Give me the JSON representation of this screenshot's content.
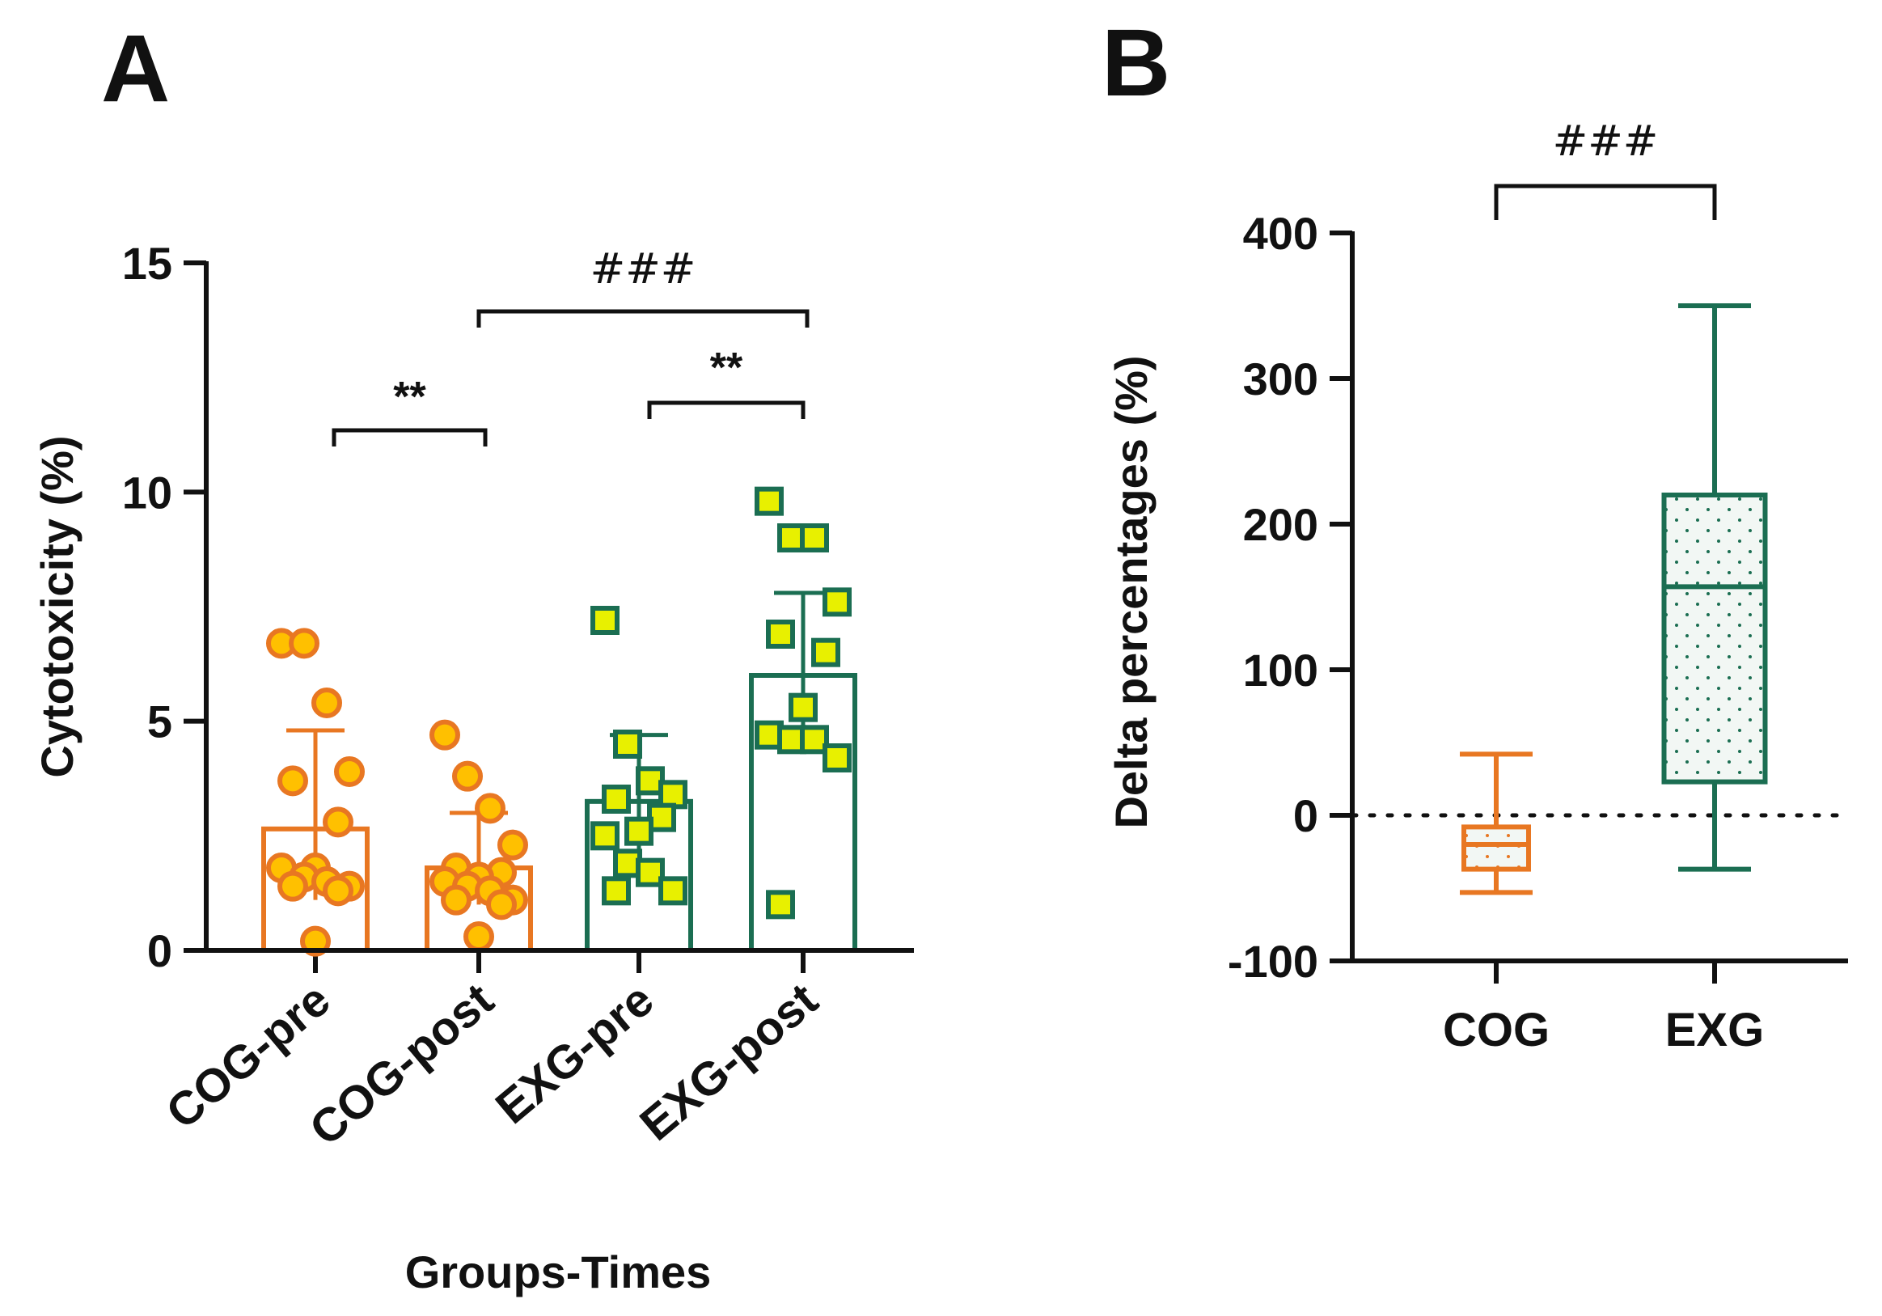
{
  "colors": {
    "orange": "#E87722",
    "green": "#1B6E52",
    "point_fill_orange": "#FFC000",
    "point_fill_green": "#E8F000",
    "box_fill": "#F2F7F4",
    "axis": "#111111"
  },
  "chart_data": [
    {
      "panel": "A",
      "type": "bar",
      "xlabel": "Groups-Times",
      "ylabel": "Cytotoxicity (%)",
      "ylim": [
        0,
        15
      ],
      "yticks": [
        "0",
        "5",
        "10",
        "15"
      ],
      "categories": [
        "COG-pre",
        "COG-post",
        "EXG-pre",
        "EXG-post"
      ],
      "series": [
        {
          "values": [
            2.65,
            1.8,
            3.25,
            6.0
          ],
          "error_upper": [
            4.8,
            3.0,
            4.7,
            7.8
          ],
          "error_lower": [
            1.1,
            1.0,
            2.0,
            4.5
          ],
          "points": [
            [
              6.7,
              6.7,
              5.4,
              3.9,
              3.7,
              2.8,
              1.8,
              1.8,
              1.6,
              1.5,
              1.4,
              1.4,
              1.3,
              0.2
            ],
            [
              4.7,
              3.8,
              3.1,
              2.3,
              1.8,
              1.7,
              1.6,
              1.5,
              1.4,
              1.3,
              1.1,
              1.1,
              1.0,
              0.3
            ],
            [
              7.2,
              4.5,
              3.7,
              3.4,
              3.3,
              2.9,
              2.6,
              2.5,
              1.9,
              1.7,
              1.3,
              1.3
            ],
            [
              9.8,
              9.0,
              9.0,
              7.6,
              6.9,
              6.5,
              5.3,
              4.7,
              4.6,
              4.6,
              4.2,
              1.0
            ]
          ]
        }
      ],
      "annotations": [
        {
          "label": "**",
          "from": "COG-pre",
          "to": "COG-post"
        },
        {
          "label": "**",
          "from": "EXG-pre",
          "to": "EXG-post"
        },
        {
          "label": "###",
          "from": "COG-post",
          "to": "EXG-post"
        }
      ]
    },
    {
      "panel": "B",
      "type": "box",
      "ylabel": "Delta percentages (%)",
      "ylim": [
        -100,
        400
      ],
      "yticks": [
        "400",
        "300",
        "200",
        "100",
        "0",
        "-100"
      ],
      "reference_line": 0,
      "categories": [
        "COG",
        "EXG"
      ],
      "boxes": [
        {
          "name": "COG",
          "min": -53,
          "q1": -37,
          "median": -20,
          "q3": -8,
          "max": 42
        },
        {
          "name": "EXG",
          "min": -37,
          "q1": 23,
          "median": 157,
          "q3": 220,
          "max": 350
        }
      ],
      "annotations": [
        {
          "label": "###",
          "from": "COG",
          "to": "EXG"
        }
      ]
    }
  ]
}
